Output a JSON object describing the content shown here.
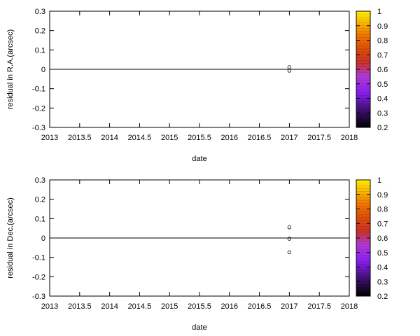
{
  "chart_data": [
    {
      "type": "scatter",
      "title": "",
      "xlabel": "date",
      "ylabel": "residual in R.A.(arcsec)",
      "xlim": [
        2013,
        2018
      ],
      "ylim": [
        -0.3,
        0.3
      ],
      "xticks": [
        2013,
        2013.5,
        2014,
        2014.5,
        2015,
        2015.5,
        2016,
        2016.5,
        2017,
        2017.5,
        2018
      ],
      "yticks": [
        -0.3,
        -0.2,
        -0.1,
        0,
        0.1,
        0.2,
        0.3
      ],
      "zero_line": true,
      "grid": false,
      "points": [
        {
          "x": 2017.0,
          "y": 0.011
        },
        {
          "x": 2017.0,
          "y": -0.007
        }
      ],
      "colorbar": {
        "range": [
          0.2,
          1
        ],
        "ticks": [
          0.2,
          0.3,
          0.4,
          0.5,
          0.6,
          0.7,
          0.8,
          0.9,
          1
        ],
        "palette": "gnuplot (black-purple-red-orange-yellow)"
      }
    },
    {
      "type": "scatter",
      "title": "",
      "xlabel": "date",
      "ylabel": "residual in Dec.(arcsec)",
      "xlim": [
        2013,
        2018
      ],
      "ylim": [
        -0.3,
        0.3
      ],
      "xticks": [
        2013,
        2013.5,
        2014,
        2014.5,
        2015,
        2015.5,
        2016,
        2016.5,
        2017,
        2017.5,
        2018
      ],
      "yticks": [
        -0.3,
        -0.2,
        -0.1,
        0,
        0.1,
        0.2,
        0.3
      ],
      "zero_line": true,
      "grid": false,
      "points": [
        {
          "x": 2017.0,
          "y": 0.055
        },
        {
          "x": 2017.0,
          "y": -0.004
        },
        {
          "x": 2017.0,
          "y": -0.074
        }
      ],
      "colorbar": {
        "range": [
          0.2,
          1
        ],
        "ticks": [
          0.2,
          0.3,
          0.4,
          0.5,
          0.6,
          0.7,
          0.8,
          0.9,
          1
        ],
        "palette": "gnuplot (black-purple-red-orange-yellow)"
      }
    }
  ]
}
